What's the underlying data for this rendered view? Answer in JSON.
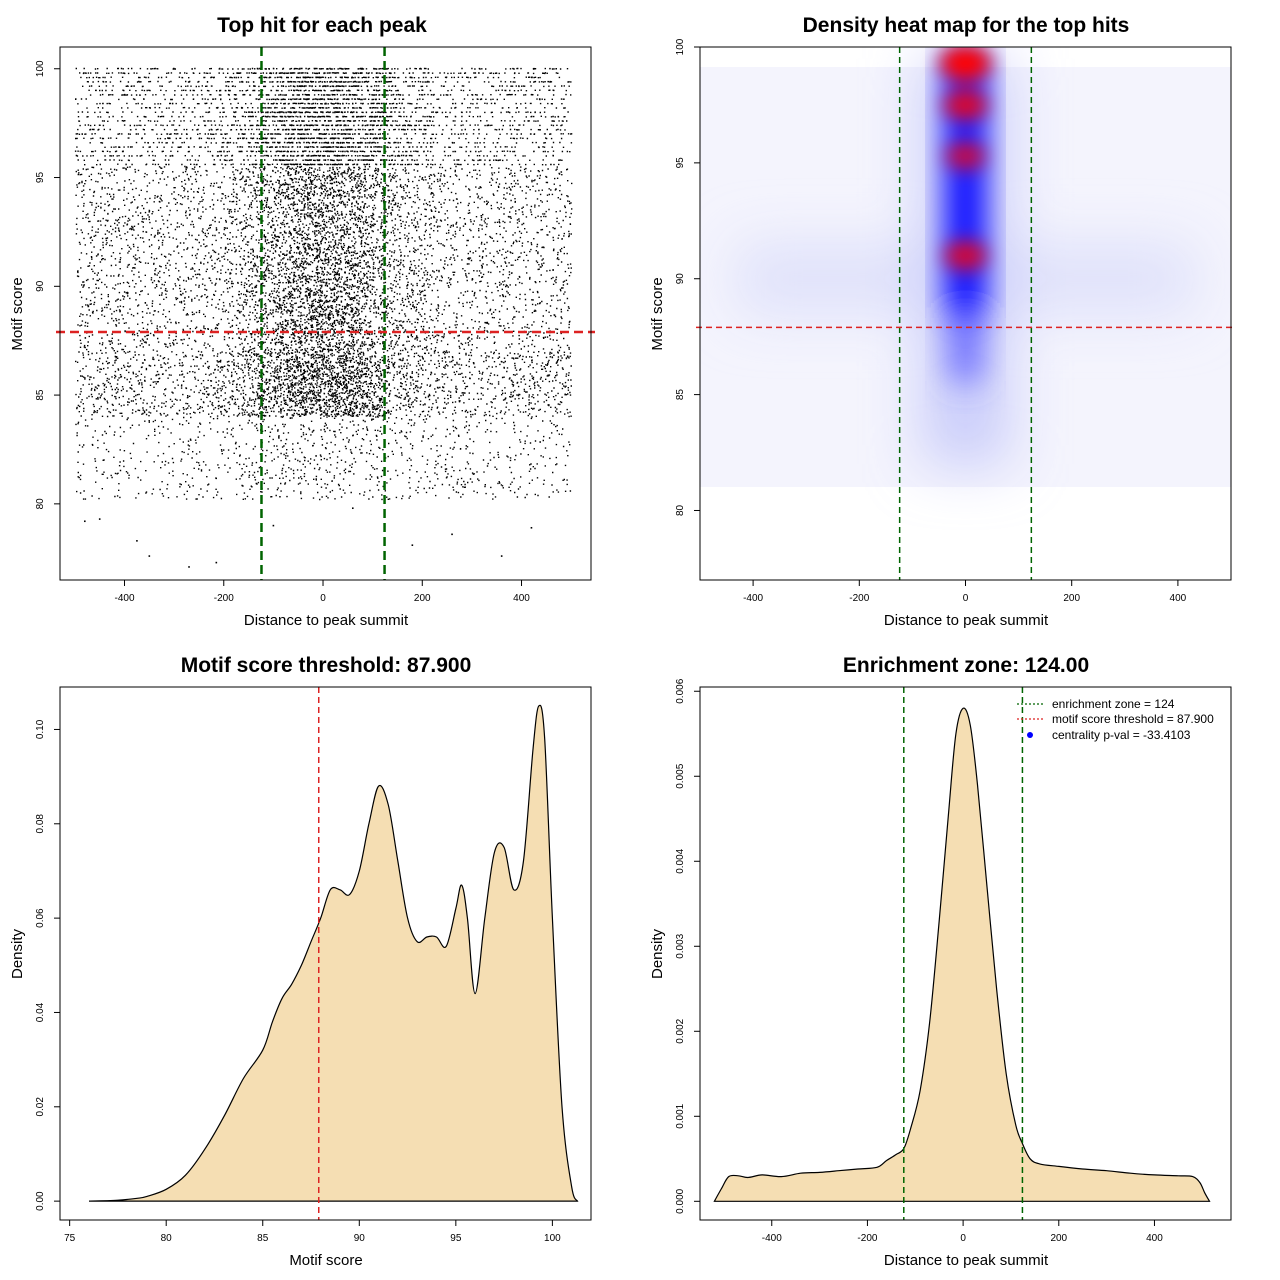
{
  "chart_data": [
    {
      "id": "scatter",
      "type": "scatter",
      "title": "Top hit for each peak",
      "xlabel": "Distance to peak summit",
      "ylabel": "Motif score",
      "xlim": [
        -530,
        540
      ],
      "ylim": [
        76.5,
        101.0
      ],
      "xticks": [
        -400,
        -200,
        0,
        200,
        400
      ],
      "yticks": [
        80,
        85,
        90,
        95,
        100
      ],
      "x_range": [
        -500,
        500
      ],
      "density_center": 0,
      "density_sd": 90,
      "score_range": [
        77.2,
        100
      ],
      "point_count": 14000,
      "vlines": [
        {
          "x": -124,
          "color": "#006400",
          "style": "dashed"
        },
        {
          "x": 124,
          "color": "#006400",
          "style": "dashed"
        }
      ],
      "hlines": [
        {
          "y": 87.9,
          "color": "#dd2222",
          "style": "dashed"
        }
      ],
      "grid": false,
      "points": [
        {
          "x": -270,
          "y": 77.1
        },
        {
          "x": -350,
          "y": 77.6
        },
        {
          "x": -215,
          "y": 77.3
        },
        {
          "x": 180,
          "y": 78.1
        },
        {
          "x": 360,
          "y": 77.6
        },
        {
          "x": -450,
          "y": 79.3
        },
        {
          "x": -375,
          "y": 78.3
        },
        {
          "x": 260,
          "y": 78.6
        },
        {
          "x": -100,
          "y": 79.0
        },
        {
          "x": 420,
          "y": 78.9
        },
        {
          "x": -480,
          "y": 79.2
        },
        {
          "x": 60,
          "y": 79.8
        }
      ]
    },
    {
      "id": "heatmap",
      "type": "heatmap",
      "title": "Density heat map for the top hits",
      "xlabel": "Distance to peak summit",
      "ylabel": "Motif score",
      "xlim": [
        -500,
        500
      ],
      "ylim": [
        77.0,
        100.0
      ],
      "xticks": [
        -400,
        -200,
        0,
        200,
        400
      ],
      "yticks": [
        80,
        85,
        90,
        95,
        100
      ],
      "vlines": [
        {
          "x": -124,
          "color": "#006400",
          "style": "dashed"
        },
        {
          "x": 124,
          "color": "#006400",
          "style": "dashed"
        }
      ],
      "hlines": [
        {
          "y": 87.9,
          "color": "#dd2222",
          "style": "dashed"
        }
      ],
      "colorscale": [
        "#ffffff",
        "#0000ff",
        "#ff0000"
      ],
      "hotspots": [
        {
          "x": 0,
          "y": 99.3,
          "intensity": 1.0
        },
        {
          "x": 0,
          "y": 97.5,
          "intensity": 0.75
        },
        {
          "x": 0,
          "y": 95.3,
          "intensity": 0.6
        },
        {
          "x": 0,
          "y": 91.0,
          "intensity": 0.7
        }
      ]
    },
    {
      "id": "score_density",
      "type": "area",
      "title": "Motif score threshold: 87.900",
      "xlabel": "Motif score",
      "ylabel": "Density",
      "xlim": [
        74.5,
        102.0
      ],
      "ylim": [
        -0.004,
        0.109
      ],
      "xticks": [
        75,
        80,
        85,
        90,
        95,
        100
      ],
      "yticks": [
        0.0,
        0.02,
        0.04,
        0.06,
        0.08,
        0.1
      ],
      "ytick_labels": [
        "0.00",
        "0.02",
        "0.04",
        "0.06",
        "0.08",
        "0.10"
      ],
      "fill": "#f5deb3",
      "vlines": [
        {
          "x": 87.9,
          "color": "#dd2222",
          "style": "dashed"
        }
      ],
      "x": [
        76.0,
        77.5,
        78.5,
        79.0,
        80.0,
        81.0,
        82.0,
        83.0,
        84.0,
        85.0,
        85.5,
        86.0,
        86.5,
        87.0,
        87.5,
        88.0,
        88.5,
        89.0,
        89.5,
        90.0,
        90.5,
        91.0,
        91.5,
        92.0,
        92.5,
        93.0,
        93.5,
        94.0,
        94.5,
        95.0,
        95.3,
        95.6,
        96.0,
        96.5,
        97.0,
        97.5,
        98.0,
        98.5,
        99.0,
        99.3,
        99.6,
        100.0,
        100.5,
        101.0,
        101.3
      ],
      "y": [
        0.0,
        0.0002,
        0.0006,
        0.001,
        0.0025,
        0.0055,
        0.011,
        0.018,
        0.026,
        0.032,
        0.038,
        0.043,
        0.046,
        0.05,
        0.055,
        0.06,
        0.066,
        0.066,
        0.065,
        0.07,
        0.08,
        0.088,
        0.084,
        0.072,
        0.06,
        0.055,
        0.056,
        0.056,
        0.054,
        0.062,
        0.067,
        0.06,
        0.044,
        0.06,
        0.074,
        0.075,
        0.066,
        0.072,
        0.096,
        0.105,
        0.098,
        0.06,
        0.02,
        0.003,
        0.0
      ]
    },
    {
      "id": "distance_density",
      "type": "area",
      "title": "Enrichment zone: 124.00",
      "xlabel": "Distance to peak summit",
      "ylabel": "Density",
      "xlim": [
        -550,
        560
      ],
      "ylim": [
        -0.00022,
        0.00605
      ],
      "xticks": [
        -400,
        -200,
        0,
        200,
        400
      ],
      "yticks": [
        0.0,
        0.001,
        0.002,
        0.003,
        0.004,
        0.005,
        0.006
      ],
      "ytick_labels": [
        "0.000",
        "0.001",
        "0.002",
        "0.003",
        "0.004",
        "0.005",
        "0.006"
      ],
      "fill": "#f5deb3",
      "vlines": [
        {
          "x": -124,
          "color": "#006400",
          "style": "dashed"
        },
        {
          "x": 124,
          "color": "#006400",
          "style": "dashed"
        }
      ],
      "x": [
        -520,
        -505,
        -490,
        -470,
        -450,
        -420,
        -380,
        -340,
        -300,
        -260,
        -220,
        -180,
        -160,
        -140,
        -124,
        -110,
        -90,
        -70,
        -50,
        -30,
        -15,
        0,
        15,
        30,
        50,
        70,
        90,
        110,
        124,
        140,
        160,
        200,
        250,
        300,
        350,
        400,
        450,
        480,
        495,
        505,
        515
      ],
      "y": [
        0.0,
        0.00015,
        0.00029,
        0.0003,
        0.00028,
        0.00031,
        0.00029,
        0.00033,
        0.00034,
        0.00036,
        0.00038,
        0.0004,
        0.00048,
        0.00055,
        0.00062,
        0.00085,
        0.0013,
        0.0021,
        0.0033,
        0.0046,
        0.0055,
        0.0058,
        0.0056,
        0.0049,
        0.0037,
        0.0025,
        0.0015,
        0.0009,
        0.00068,
        0.0005,
        0.00044,
        0.00041,
        0.00038,
        0.00036,
        0.00033,
        0.00031,
        0.0003,
        0.00029,
        0.00022,
        0.0001,
        0.0
      ],
      "legend": {
        "position": "top-right",
        "entries": [
          {
            "label": "enrichment zone = 124",
            "color": "#006400",
            "style": "dotted-line"
          },
          {
            "label": "motif score threshold = 87.900",
            "color": "#dd2222",
            "style": "dotted-line"
          },
          {
            "label": "centrality p-val = -33.4103",
            "color": "#0000ff",
            "style": "point"
          }
        ]
      }
    }
  ]
}
